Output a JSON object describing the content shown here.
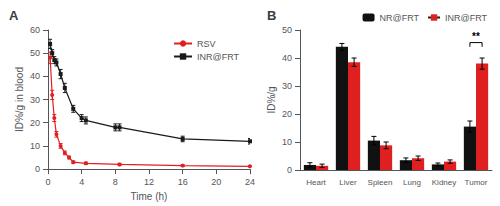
{
  "chart_data": [
    {
      "type": "line",
      "title": "A",
      "xlabel": "Time (h)",
      "ylabel": "ID%/g in blood",
      "xlim": [
        0,
        24
      ],
      "xticks": [
        0,
        4,
        8,
        12,
        16,
        20,
        24
      ],
      "ylim": [
        0,
        60
      ],
      "yticks": [
        0,
        10,
        20,
        30,
        40,
        50,
        60
      ],
      "grid": false,
      "legend": "upper right",
      "series": [
        {
          "name": "RSV",
          "color": "#e02020",
          "marker": "circle",
          "x": [
            0.25,
            0.5,
            0.75,
            1,
            1.5,
            2,
            2.5,
            3,
            4.5,
            8.5,
            16,
            24
          ],
          "values": [
            48,
            32,
            22,
            15,
            10,
            7,
            5,
            3,
            2.5,
            2,
            1.5,
            1.2
          ],
          "yerr": [
            2.5,
            2,
            1.5,
            1.2,
            1,
            0.8,
            0.6,
            0.5,
            0.5,
            0.5,
            0.4,
            0.3
          ]
        },
        {
          "name": "INR@FRT",
          "color": "#1a1a1a",
          "marker": "square",
          "x": [
            0.25,
            0.5,
            0.75,
            1,
            1.5,
            2,
            3,
            4,
            4.5,
            8,
            8.5,
            16,
            24
          ],
          "values": [
            54,
            50,
            47,
            46,
            41,
            35,
            26,
            22,
            21,
            18,
            18,
            13,
            12
          ],
          "yerr": [
            2,
            1.5,
            1.5,
            1.5,
            2,
            2,
            1.5,
            1.5,
            1.5,
            1.5,
            1.5,
            1.2,
            1.2
          ]
        }
      ]
    },
    {
      "type": "bar",
      "title": "B",
      "ylabel": "ID%/g",
      "ylim": [
        0,
        50
      ],
      "yticks": [
        0,
        10,
        20,
        30,
        40,
        50
      ],
      "grid": false,
      "legend": "upper right",
      "categories": [
        "Heart",
        "Liver",
        "Spleen",
        "Lung",
        "Kidney",
        "Tumor"
      ],
      "series": [
        {
          "name": "NR@FRT",
          "color": "#111111",
          "values": [
            1.8,
            44,
            10.5,
            3.5,
            2.0,
            15.5
          ],
          "yerr": [
            0.8,
            1.2,
            1.5,
            0.8,
            0.5,
            2.0
          ]
        },
        {
          "name": "INR@FRT",
          "color": "#e02020",
          "values": [
            1.5,
            38.5,
            8.8,
            4.2,
            3.0,
            38.0
          ],
          "yerr": [
            0.6,
            1.5,
            1.2,
            0.8,
            0.6,
            2.0
          ]
        }
      ],
      "annotations": [
        {
          "text": "**",
          "category": "Tumor",
          "bracket_y": 44,
          "text_y": 45.5
        }
      ]
    }
  ]
}
